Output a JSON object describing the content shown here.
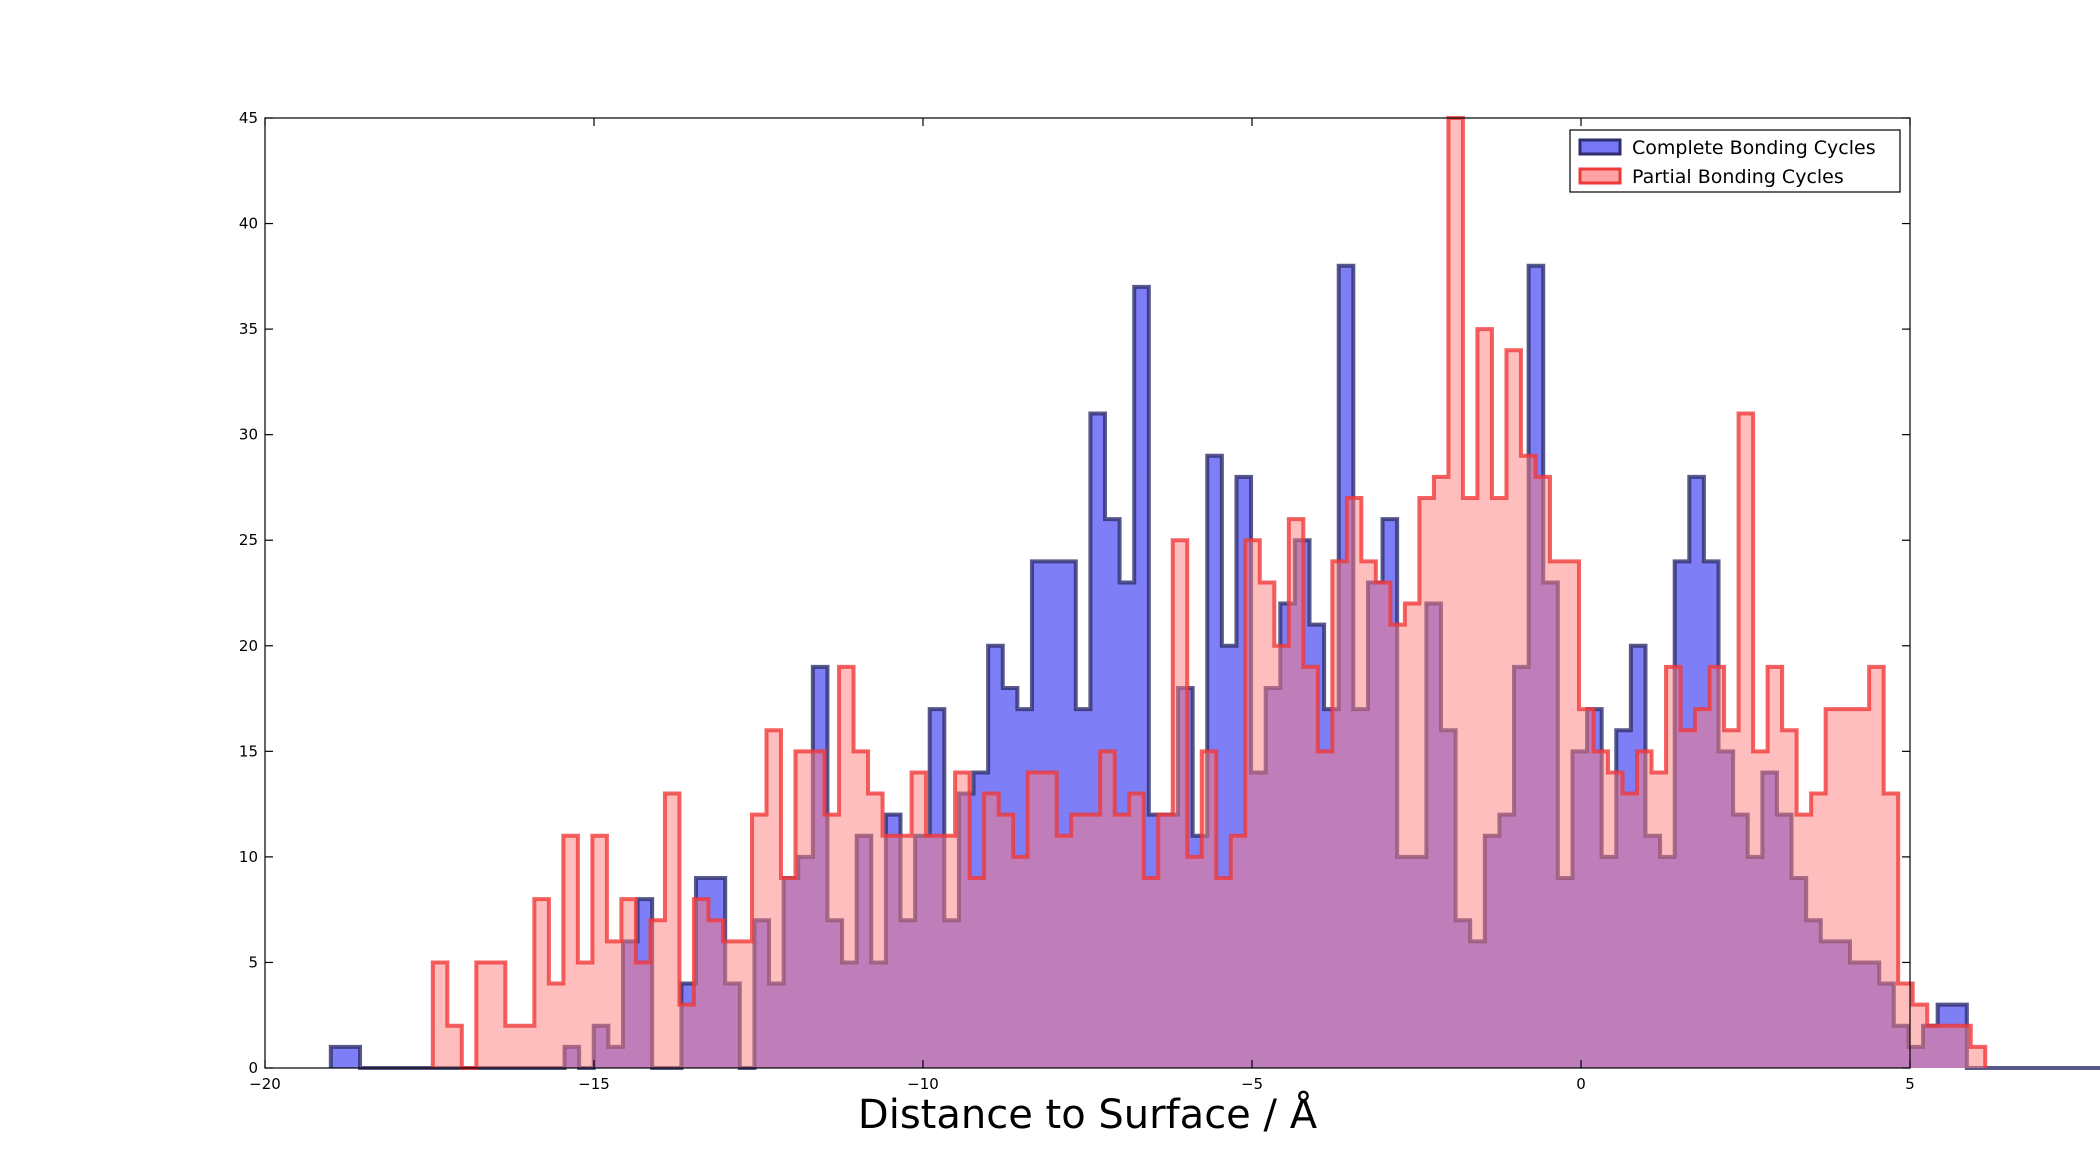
{
  "chart_data": {
    "type": "bar",
    "title": "",
    "xlabel": "Distance to Surface / Å",
    "ylabel": "",
    "xlim": [
      -20,
      5
    ],
    "ylim": [
      0,
      45
    ],
    "xticks": [
      -20,
      -15,
      -10,
      -5,
      0,
      5
    ],
    "xtick_labels": [
      "−20",
      "−15",
      "−10",
      "−5",
      "0",
      "5"
    ],
    "yticks": [
      0,
      5,
      10,
      15,
      20,
      25,
      30,
      35,
      40,
      45
    ],
    "ytick_labels": [
      "0",
      "5",
      "10",
      "15",
      "20",
      "25",
      "30",
      "35",
      "40",
      "45"
    ],
    "grid": false,
    "legend_position": "top-right",
    "series": [
      {
        "name": "Complete Bonding Cycles",
        "fill_color": "#7777f5",
        "edge_color": "#2e2e6e",
        "x_start": -19.0,
        "bin_width": 0.222,
        "values": [
          1,
          1,
          0,
          0,
          0,
          0,
          0,
          0,
          0,
          0,
          0,
          0,
          0,
          0,
          0,
          0,
          1,
          0,
          2,
          1,
          6,
          8,
          0,
          0,
          4,
          9,
          9,
          4,
          0,
          7,
          4,
          9,
          10,
          19,
          7,
          5,
          11,
          5,
          12,
          7,
          11,
          17,
          7,
          13,
          14,
          20,
          18,
          17,
          24,
          24,
          24,
          17,
          31,
          26,
          23,
          37,
          12,
          12,
          18,
          11,
          29,
          20,
          28,
          14,
          18,
          22,
          25,
          21,
          17,
          38,
          17,
          23,
          26,
          10,
          10,
          22,
          16,
          7,
          6,
          11,
          12,
          19,
          38,
          23,
          9,
          15,
          17,
          10,
          16,
          20,
          11,
          10,
          24,
          28,
          24,
          15,
          12,
          10,
          14,
          12,
          9,
          7,
          6,
          6,
          5,
          5,
          4,
          2,
          1,
          2,
          3,
          3,
          0,
          0,
          0,
          0,
          0,
          0,
          0,
          0,
          0,
          0,
          0,
          0,
          0,
          0,
          0,
          0,
          0,
          0,
          0,
          0,
          1,
          1,
          1,
          0,
          0,
          2,
          0
        ]
      },
      {
        "name": "Partial Bonding Cycles",
        "fill_color": "#ff7d7d",
        "edge_color": "#f03a3a",
        "x_start": -17.45,
        "bin_width": 0.2205,
        "values": [
          5,
          2,
          0,
          5,
          5,
          2,
          2,
          8,
          4,
          11,
          5,
          11,
          6,
          8,
          5,
          7,
          13,
          3,
          8,
          7,
          6,
          6,
          12,
          16,
          9,
          15,
          15,
          12,
          19,
          15,
          13,
          11,
          11,
          14,
          11,
          11,
          14,
          9,
          13,
          12,
          10,
          14,
          14,
          11,
          12,
          12,
          15,
          12,
          13,
          9,
          12,
          25,
          10,
          15,
          9,
          11,
          25,
          23,
          20,
          26,
          19,
          15,
          24,
          27,
          24,
          23,
          21,
          22,
          27,
          28,
          45,
          27,
          35,
          27,
          34,
          29,
          28,
          24,
          24,
          17,
          15,
          14,
          13,
          15,
          14,
          19,
          16,
          17,
          19,
          16,
          31,
          15,
          19,
          16,
          12,
          13,
          17,
          17,
          17,
          19,
          13,
          4,
          3,
          2,
          2,
          2,
          1
        ]
      }
    ]
  }
}
